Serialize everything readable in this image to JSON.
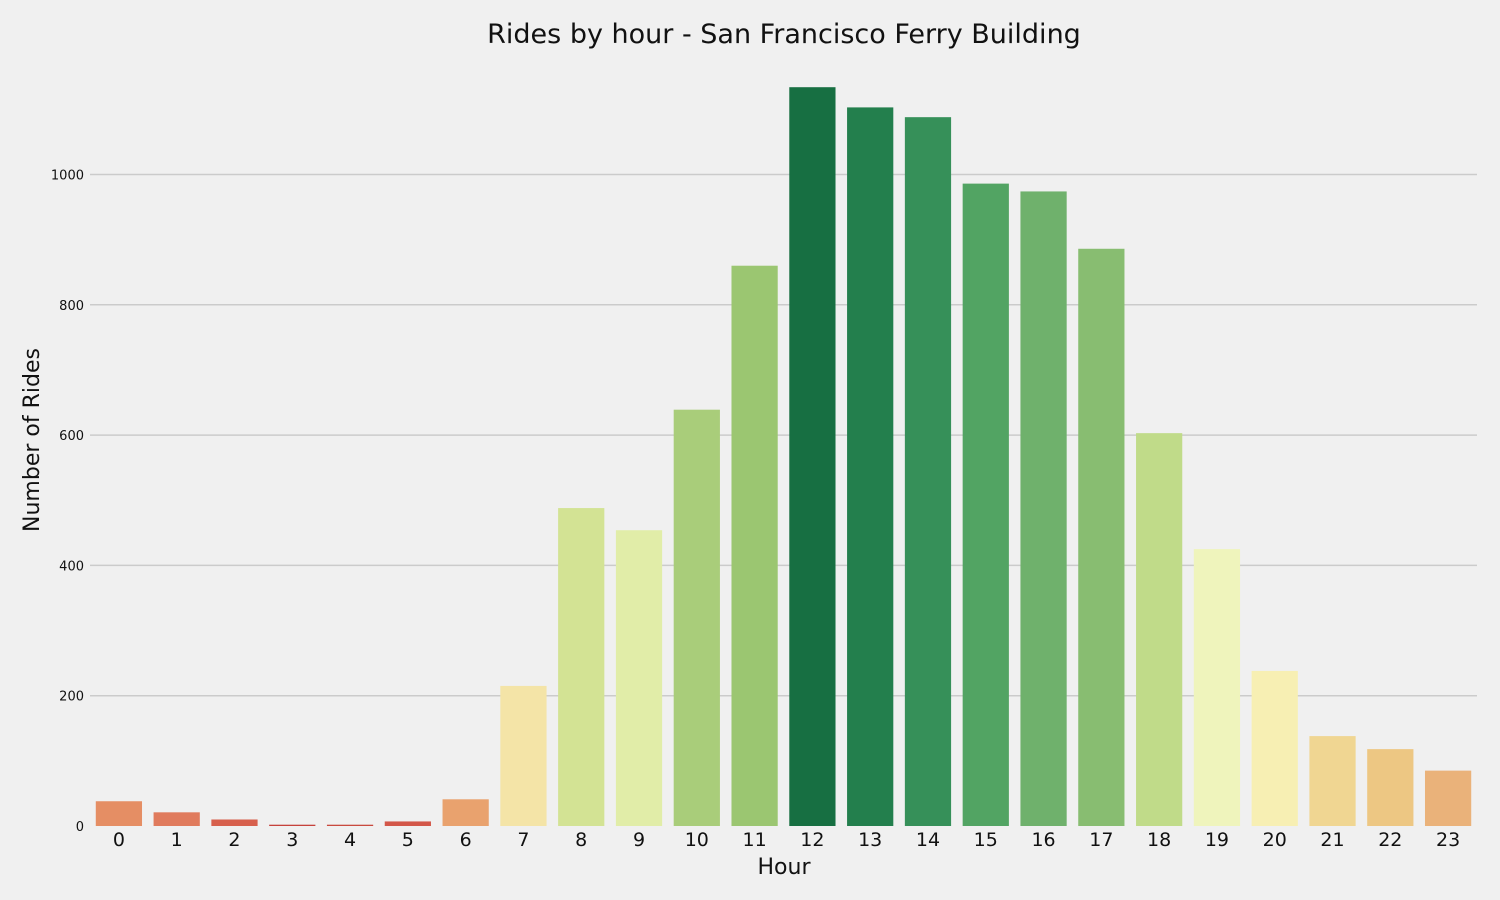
{
  "chart_data": {
    "type": "bar",
    "title": "Rides by hour - San Francisco Ferry Building",
    "xlabel": "Hour",
    "ylabel": "Number of Rides",
    "categories": [
      "0",
      "1",
      "2",
      "3",
      "4",
      "5",
      "6",
      "7",
      "8",
      "9",
      "10",
      "11",
      "12",
      "13",
      "14",
      "15",
      "16",
      "17",
      "18",
      "19",
      "20",
      "21",
      "22",
      "23"
    ],
    "values": [
      38,
      21,
      10,
      2,
      2,
      7,
      41,
      215,
      488,
      454,
      639,
      860,
      1134,
      1103,
      1088,
      986,
      974,
      886,
      603,
      425,
      238,
      138,
      118,
      85
    ],
    "colors": [
      "#e58e64",
      "#e07b5d",
      "#d7604d",
      "#c6423c",
      "#c94a3f",
      "#d35749",
      "#e9a26e",
      "#f4e4a7",
      "#d3e394",
      "#e1eda8",
      "#a9cd7a",
      "#9bc671",
      "#176f42",
      "#237f4d",
      "#369059",
      "#52a463",
      "#6fb16c",
      "#88bd71",
      "#c0db89",
      "#eff4bc",
      "#f7efb3",
      "#f0d692",
      "#edc783",
      "#eab27a"
    ],
    "ylim": [
      0,
      1160
    ],
    "yticks": [
      0,
      200,
      400,
      600,
      800,
      1000
    ],
    "grid": true,
    "legend": "none"
  }
}
